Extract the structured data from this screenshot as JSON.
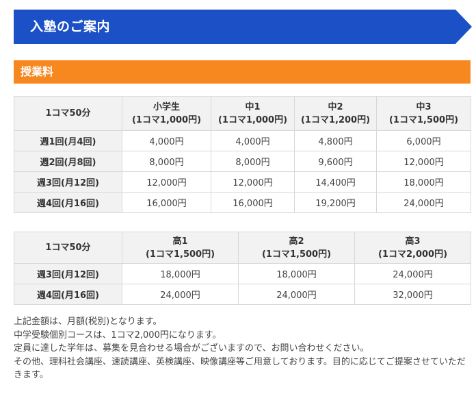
{
  "banner": {
    "title": "入塾のご案内",
    "color": "#1c50c6"
  },
  "section": {
    "title": "授業料",
    "color": "#f7881f"
  },
  "table1": {
    "corner": "1コマ50分",
    "columns": [
      {
        "grade": "小学生",
        "unit": "(1コマ1,000円)"
      },
      {
        "grade": "中1",
        "unit": "(1コマ1,000円)"
      },
      {
        "grade": "中2",
        "unit": "(1コマ1,200円)"
      },
      {
        "grade": "中3",
        "unit": "(1コマ1,500円)"
      }
    ],
    "rows": [
      {
        "label": "週1回(月4回)",
        "cells": [
          "4,000円",
          "4,000円",
          "4,800円",
          "6,000円"
        ]
      },
      {
        "label": "週2回(月8回)",
        "cells": [
          "8,000円",
          "8,000円",
          "9,600円",
          "12,000円"
        ]
      },
      {
        "label": "週3回(月12回)",
        "cells": [
          "12,000円",
          "12,000円",
          "14,400円",
          "18,000円"
        ]
      },
      {
        "label": "週4回(月16回)",
        "cells": [
          "16,000円",
          "16,000円",
          "19,200円",
          "24,000円"
        ]
      }
    ]
  },
  "table2": {
    "corner": "1コマ50分",
    "columns": [
      {
        "grade": "高1",
        "unit": "(1コマ1,500円)"
      },
      {
        "grade": "高2",
        "unit": "(1コマ1,500円)"
      },
      {
        "grade": "高3",
        "unit": "(1コマ2,000円)"
      }
    ],
    "rows": [
      {
        "label": "週3回(月12回)",
        "cells": [
          "18,000円",
          "18,000円",
          "24,000円"
        ]
      },
      {
        "label": "週4回(月16回)",
        "cells": [
          "24,000円",
          "24,000円",
          "32,000円"
        ]
      }
    ]
  },
  "notes": [
    "上記金額は、月額(税別)となります。",
    "中学受験個別コースは、1コマ2,000円になります。",
    "定員に達した学年は、募集を見合わせる場合がございますので、お問い合わせください。",
    "その他、理科社会講座、速読講座、英検講座、映像講座等ご用意しております。目的に応じてご提案させていただきます。"
  ]
}
